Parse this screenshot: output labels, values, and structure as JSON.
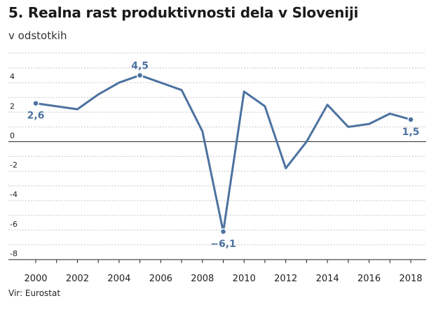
{
  "chart_data": {
    "type": "line",
    "title": "5. Realna rast produktivnosti dela v Sloveniji",
    "subtitle": "v odstotkih",
    "source": "Vir: Eurostat",
    "xlabel": "",
    "ylabel": "",
    "x": [
      2000,
      2001,
      2002,
      2003,
      2004,
      2005,
      2006,
      2007,
      2008,
      2009,
      2010,
      2011,
      2012,
      2013,
      2014,
      2015,
      2016,
      2017,
      2018
    ],
    "series": [
      {
        "values": [
          2.6,
          2.4,
          2.2,
          3.2,
          4.0,
          4.5,
          4.0,
          3.5,
          0.7,
          -6.1,
          3.4,
          2.4,
          -1.8,
          0.0,
          2.5,
          1.0,
          1.2,
          1.9,
          1.5
        ]
      }
    ],
    "ylim": [
      -8,
      6
    ],
    "yticks": [
      -8,
      -6,
      -4,
      -2,
      0,
      2,
      4
    ],
    "ytick_labels": [
      "-8",
      "-6",
      "-4",
      "-2",
      "0",
      "2",
      "4"
    ],
    "xticks": [
      2000,
      2002,
      2004,
      2006,
      2008,
      2010,
      2012,
      2014,
      2016,
      2018
    ],
    "xtick_labels": [
      "2000",
      "2002",
      "2004",
      "2006",
      "2008",
      "2010",
      "2012",
      "2014",
      "2016",
      "2018"
    ],
    "annotations": [
      {
        "x": 2000,
        "label": "2,6",
        "position": "below"
      },
      {
        "x": 2005,
        "label": "4,5",
        "position": "above"
      },
      {
        "x": 2009,
        "label": "−6,1",
        "position": "below"
      },
      {
        "x": 2018,
        "label": "1,5",
        "position": "below"
      }
    ],
    "grid": true,
    "color": "#4c72a0"
  }
}
